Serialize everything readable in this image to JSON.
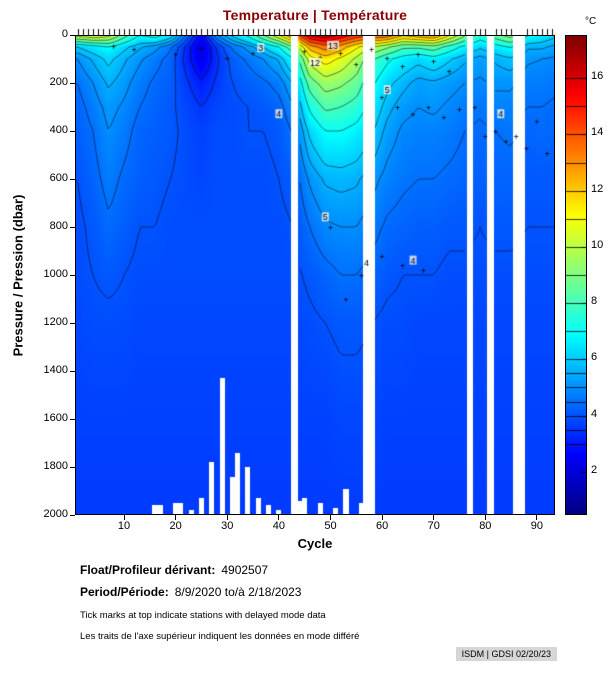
{
  "title": {
    "text": "Temperature | Température",
    "color": "#8b0000"
  },
  "colorbar": {
    "unit": "°C",
    "ticks": [
      2,
      4,
      6,
      8,
      10,
      12,
      14,
      16
    ],
    "clim": [
      0.5,
      17.5
    ]
  },
  "axes": {
    "x_label": "Cycle",
    "y_label": "Pressure / Pression (dbar)",
    "x_ticks": [
      10,
      20,
      30,
      40,
      50,
      60,
      70,
      80,
      90
    ],
    "y_ticks": [
      0,
      200,
      400,
      600,
      800,
      1000,
      1200,
      1400,
      1600,
      1800,
      2000
    ],
    "x_range": [
      0.5,
      93.5
    ],
    "y_range": [
      0,
      2000
    ]
  },
  "chart_data": {
    "type": "heatmap",
    "title": "Temperature | Température",
    "xlabel": "Cycle",
    "ylabel": "Pressure / Pression (dbar)",
    "unit": "°C",
    "x_cycles": [
      1,
      4,
      7,
      10,
      13,
      16,
      19,
      22,
      25,
      28,
      31,
      34,
      37,
      40,
      43,
      46,
      49,
      52,
      55,
      58,
      61,
      64,
      67,
      70,
      73,
      76,
      79,
      82,
      85,
      88,
      91,
      94
    ],
    "y_pressures": [
      0,
      50,
      100,
      200,
      300,
      400,
      600,
      800,
      1000,
      1200,
      1600,
      2000
    ],
    "temps": [
      [
        10.5,
        6.0,
        5.0,
        4.5,
        4.3,
        4.2,
        4.0,
        3.9,
        3.9,
        3.8,
        3.7,
        3.6
      ],
      [
        11.0,
        6.5,
        5.6,
        5.0,
        4.7,
        4.5,
        4.3,
        4.1,
        4.0,
        3.9,
        3.7,
        3.6
      ],
      [
        10.5,
        7.0,
        6.2,
        5.6,
        5.2,
        5.0,
        4.7,
        4.4,
        4.1,
        3.9,
        3.7,
        3.6
      ],
      [
        8.5,
        6.2,
        5.6,
        5.2,
        4.9,
        4.7,
        4.4,
        4.2,
        4.0,
        3.9,
        3.7,
        3.6
      ],
      [
        7.0,
        5.6,
        5.1,
        4.7,
        4.5,
        4.3,
        4.2,
        4.0,
        3.9,
        3.8,
        3.7,
        3.6
      ],
      [
        7.5,
        5.2,
        4.7,
        4.4,
        4.3,
        4.2,
        4.1,
        4.0,
        3.9,
        3.8,
        3.7,
        3.6
      ],
      [
        6.5,
        4.6,
        4.3,
        4.2,
        4.1,
        4.1,
        4.0,
        3.9,
        3.9,
        3.8,
        3.7,
        3.6
      ],
      [
        4.5,
        3.4,
        3.3,
        3.6,
        3.8,
        3.9,
        3.9,
        3.9,
        3.9,
        3.8,
        3.7,
        3.6
      ],
      [
        2.6,
        2.1,
        2.3,
        3.1,
        3.5,
        3.7,
        3.8,
        3.9,
        3.9,
        3.8,
        3.7,
        3.6
      ],
      [
        5.0,
        3.6,
        3.4,
        3.6,
        3.8,
        3.9,
        3.9,
        3.9,
        3.9,
        3.8,
        3.7,
        3.6
      ],
      [
        6.2,
        4.6,
        4.2,
        4.0,
        3.9,
        3.9,
        3.9,
        3.9,
        3.9,
        3.8,
        3.7,
        3.6
      ],
      [
        7.2,
        5.2,
        4.6,
        4.2,
        4.0,
        4.0,
        3.9,
        3.9,
        3.9,
        3.8,
        3.7,
        3.6
      ],
      [
        9.0,
        6.0,
        5.0,
        4.4,
        4.1,
        4.0,
        3.9,
        3.9,
        3.9,
        3.8,
        3.7,
        3.6
      ],
      [
        11.0,
        7.0,
        5.6,
        4.7,
        4.3,
        4.1,
        4.0,
        3.9,
        3.9,
        3.8,
        3.7,
        3.6
      ],
      [
        13.5,
        9.0,
        7.0,
        5.6,
        5.0,
        4.6,
        4.2,
        4.0,
        3.9,
        3.8,
        3.7,
        3.6
      ],
      [
        16.2,
        12.5,
        10.5,
        8.5,
        7.2,
        6.2,
        5.1,
        4.5,
        4.1,
        3.9,
        3.7,
        3.6
      ],
      [
        16.8,
        13.5,
        11.5,
        9.5,
        8.2,
        7.0,
        5.6,
        4.9,
        4.3,
        4.0,
        3.7,
        3.6
      ],
      [
        15.8,
        12.5,
        10.8,
        9.2,
        8.0,
        7.0,
        5.7,
        5.0,
        4.5,
        4.1,
        3.8,
        3.6
      ],
      [
        14.8,
        11.2,
        9.8,
        8.6,
        7.6,
        6.7,
        5.6,
        5.0,
        4.5,
        4.1,
        3.8,
        3.6
      ],
      [
        14.2,
        10.0,
        8.2,
        7.2,
        6.6,
        6.1,
        5.2,
        4.7,
        4.3,
        4.0,
        3.8,
        3.6
      ],
      [
        13.8,
        9.2,
        7.2,
        6.2,
        5.7,
        5.3,
        4.8,
        4.4,
        4.1,
        3.9,
        3.7,
        3.6
      ],
      [
        12.2,
        8.2,
        6.6,
        5.7,
        5.2,
        4.9,
        4.6,
        4.3,
        4.0,
        3.9,
        3.7,
        3.6
      ],
      [
        12.8,
        8.2,
        6.2,
        5.3,
        5.0,
        4.8,
        4.5,
        4.2,
        4.0,
        3.8,
        3.7,
        3.6
      ],
      [
        13.2,
        8.6,
        6.6,
        5.4,
        5.1,
        4.8,
        4.5,
        4.2,
        4.0,
        3.8,
        3.7,
        3.6
      ],
      [
        11.2,
        7.6,
        6.1,
        5.2,
        4.9,
        4.7,
        4.4,
        4.1,
        3.9,
        3.8,
        3.7,
        3.6
      ],
      [
        9.2,
        6.7,
        5.6,
        5.0,
        4.7,
        4.5,
        4.3,
        4.1,
        3.9,
        3.8,
        3.7,
        3.6
      ],
      [
        7.6,
        6.1,
        5.3,
        4.9,
        4.6,
        4.4,
        4.2,
        4.0,
        3.9,
        3.8,
        3.7,
        3.6
      ],
      [
        8.6,
        6.6,
        5.6,
        5.1,
        4.8,
        4.5,
        4.3,
        4.1,
        3.9,
        3.8,
        3.7,
        3.6
      ],
      [
        9.6,
        7.1,
        5.9,
        5.1,
        4.8,
        4.6,
        4.3,
        4.1,
        3.9,
        3.8,
        3.7,
        3.6
      ],
      [
        7.1,
        5.6,
        5.1,
        4.7,
        4.5,
        4.3,
        4.1,
        4.0,
        3.9,
        3.8,
        3.7,
        3.6
      ],
      [
        6.6,
        5.6,
        5.0,
        4.7,
        4.5,
        4.4,
        4.1,
        4.0,
        3.9,
        3.8,
        3.7,
        3.6
      ],
      [
        6.1,
        5.3,
        4.9,
        4.6,
        4.4,
        4.3,
        4.1,
        4.0,
        3.9,
        3.8,
        3.7,
        3.6
      ]
    ],
    "contour_levels": [
      3,
      3.5,
      4,
      4.5,
      5,
      5.5,
      6,
      7,
      8,
      9,
      10,
      11,
      12,
      13,
      14,
      15,
      16
    ],
    "missing_cycles": [
      43,
      57,
      58,
      77,
      81,
      86,
      87
    ],
    "max_pressure_by_cycle": {
      "16": 1960,
      "17": 1960,
      "20": 1950,
      "21": 1950,
      "23": 1980,
      "25": 1930,
      "27": 1780,
      "29": 1430,
      "31": 1840,
      "32": 1740,
      "34": 1800,
      "36": 1930,
      "38": 1960,
      "40": 1980,
      "44": 1940,
      "45": 1930,
      "48": 1950,
      "51": 1970,
      "53": 1890,
      "56": 1950
    },
    "contour_labels": [
      {
        "v": "12",
        "c": 47,
        "p": 115
      },
      {
        "v": "13",
        "c": 50.5,
        "p": 45
      },
      {
        "v": "3",
        "c": 36.5,
        "p": 55
      },
      {
        "v": "4",
        "c": 57,
        "p": 950
      },
      {
        "v": "5",
        "c": 49,
        "p": 760
      },
      {
        "v": "4",
        "c": 66,
        "p": 940
      },
      {
        "v": "4",
        "c": 83,
        "p": 330
      },
      {
        "v": "5",
        "c": 61,
        "p": 230
      },
      {
        "v": "4",
        "c": 40,
        "p": 330
      }
    ],
    "plus_markers": [
      [
        45,
        65
      ],
      [
        48,
        90
      ],
      [
        52,
        75
      ],
      [
        55,
        120
      ],
      [
        58,
        60
      ],
      [
        61,
        95
      ],
      [
        64,
        130
      ],
      [
        67,
        80
      ],
      [
        70,
        110
      ],
      [
        73,
        150
      ],
      [
        60,
        260
      ],
      [
        63,
        300
      ],
      [
        66,
        330
      ],
      [
        69,
        300
      ],
      [
        72,
        340
      ],
      [
        75,
        310
      ],
      [
        78,
        300
      ],
      [
        80,
        420
      ],
      [
        82,
        400
      ],
      [
        84,
        440
      ],
      [
        86,
        420
      ],
      [
        88,
        470
      ],
      [
        90,
        360
      ],
      [
        92,
        490
      ],
      [
        50,
        800
      ],
      [
        53,
        1100
      ],
      [
        56,
        1000
      ],
      [
        60,
        920
      ],
      [
        64,
        960
      ],
      [
        68,
        980
      ],
      [
        35,
        75
      ],
      [
        30,
        95
      ],
      [
        25,
        55
      ],
      [
        20,
        80
      ],
      [
        12,
        60
      ],
      [
        8,
        45
      ]
    ]
  },
  "top_ticks": {
    "start": 1,
    "end": 93,
    "exclude": [
      43,
      57,
      58,
      77,
      81,
      86,
      87
    ]
  },
  "footer": {
    "float_label": "Float/Profileur dérivant:",
    "float_value": "4902507",
    "period_label": "Period/Période:",
    "period_value": "8/9/2020  to/à  2/18/2023",
    "note_en": "Tick marks at top indicate stations with delayed mode data",
    "note_fr": "Les traits de l'axe supérieur indiquent les données en mode différé",
    "credit": "ISDM | GDSI  02/20/23"
  }
}
